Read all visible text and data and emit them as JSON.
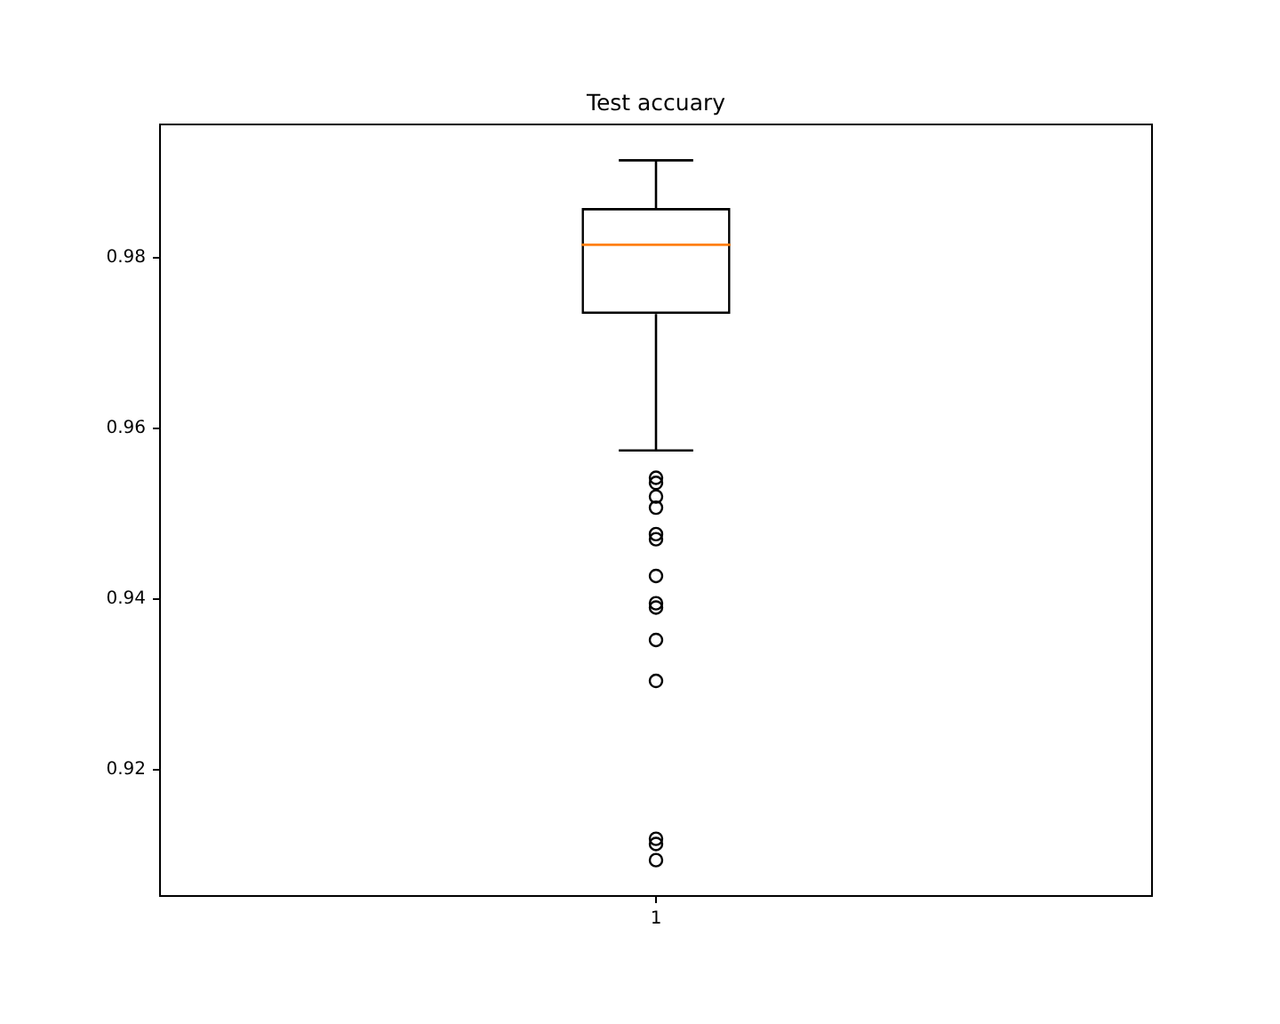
{
  "chart_data": {
    "type": "box",
    "title": "Test accuary",
    "categories": [
      "1"
    ],
    "series": [
      {
        "color": "#000000",
        "boxes": [
          {
            "low": 0.9574,
            "q1": 0.9734,
            "median": 0.9815,
            "q3": 0.9858,
            "high": 0.9914,
            "outliers": [
              0.9542,
              0.9536,
              0.952,
              0.9507,
              0.9476,
              0.947,
              0.9427,
              0.9395,
              0.939,
              0.9352,
              0.9304,
              0.9119,
              0.9113,
              0.9094
            ]
          }
        ]
      }
    ],
    "ylim": [
      0.9052,
      0.9956
    ],
    "yticks": [
      0.92,
      0.94,
      0.96,
      0.98
    ]
  }
}
